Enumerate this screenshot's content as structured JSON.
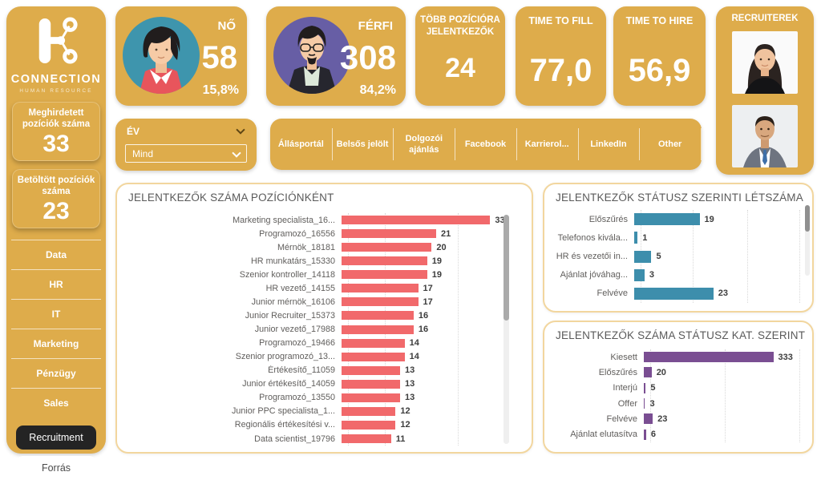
{
  "brand": {
    "title": "CONNECTION",
    "subtitle": "HUMAN RESOURCE"
  },
  "colors": {
    "gold": "#DEAC4B",
    "panel_border": "#F2D69E",
    "bar_red": "#F1696B",
    "bar_teal": "#3D8EAC",
    "bar_purple": "#7A4E92",
    "active_button_bg": "#242424",
    "title_gray": "#5A5A5A"
  },
  "sidebar": {
    "kpis": [
      {
        "label": "Meghirdetett pozíciók száma",
        "value": "33"
      },
      {
        "label": "Betöltött pozíciók száma",
        "value": "23"
      }
    ],
    "departments": [
      "Data",
      "HR",
      "IT",
      "Marketing",
      "Pénzügy",
      "Sales"
    ],
    "active_item": "Recruitment",
    "source_button": "Forrás"
  },
  "kpi_cards": {
    "female": {
      "label": "NŐ",
      "value": "58",
      "percent": "15,8%"
    },
    "male": {
      "label": "FÉRFI",
      "value": "308",
      "percent": "84,2%"
    },
    "multi_position": {
      "label": "TÖBB POZÍCIÓRA JELENTKEZŐK",
      "value": "24"
    },
    "time_to_fill": {
      "label": "TIME TO FILL",
      "value": "77,0"
    },
    "time_to_hire": {
      "label": "TIME TO HIRE",
      "value": "56,9"
    },
    "recruiters": {
      "label": "RECRUITEREK"
    }
  },
  "filters": {
    "year_label": "ÉV",
    "year_value": "Mind",
    "sources": [
      "Állásportál",
      "Belsős jelölt",
      "Dolgozói ajánlás",
      "Facebook",
      "Karrierol...",
      "LinkedIn",
      "Other"
    ]
  },
  "chart_data": [
    {
      "type": "bar",
      "orientation": "horizontal",
      "title": "JELENTKEZŐK SZÁMA POZÍCIÓNKÉNT",
      "categories": [
        "Marketing specialista_16...",
        "Programozó_16556",
        "Mérnök_18181",
        "HR munkatárs_15330",
        "Szenior kontroller_14118",
        "HR vezető_14155",
        "Junior mérnök_16106",
        "Junior Recruiter_15373",
        "Junior vezető_17988",
        "Programozó_19466",
        "Szenior programozó_13...",
        "Értékesítő_11059",
        "Junior értékesítő_14059",
        "Programozó_13550",
        "Junior PPC specialista_1...",
        "Regionális értékesítési v...",
        "Data scientist_19796"
      ],
      "values": [
        33,
        21,
        20,
        19,
        19,
        17,
        17,
        16,
        16,
        14,
        14,
        13,
        13,
        13,
        12,
        12,
        11
      ],
      "bar_color": "#F1696B",
      "xlim": [
        0,
        34
      ],
      "grid": "dotted",
      "legend": "none",
      "data_labels": true
    },
    {
      "type": "bar",
      "orientation": "horizontal",
      "title": "JELENTKEZŐK STÁTUSZ SZERINTI LÉTSZÁMA",
      "categories": [
        "Előszűrés",
        "Telefonos kivála...",
        "HR és vezetői in...",
        "Ajánlat jóváhag...",
        "Felvéve"
      ],
      "values": [
        19,
        1,
        5,
        3,
        23
      ],
      "bar_color": "#3D8EAC",
      "xlim": [
        0,
        48
      ],
      "grid": "dotted",
      "legend": "none",
      "data_labels": true
    },
    {
      "type": "bar",
      "orientation": "horizontal",
      "title": "JELENTKEZŐK SZÁMA STÁTUSZ KAT. SZERINT",
      "categories": [
        "Kiesett",
        "Előszűrés",
        "Interjú",
        "Offer",
        "Felvéve",
        "Ajánlat elutasítva"
      ],
      "values": [
        333,
        20,
        5,
        3,
        23,
        6
      ],
      "bar_color": "#7A4E92",
      "xlim": [
        0,
        400
      ],
      "grid": "dotted",
      "legend": "none",
      "data_labels": true
    }
  ]
}
